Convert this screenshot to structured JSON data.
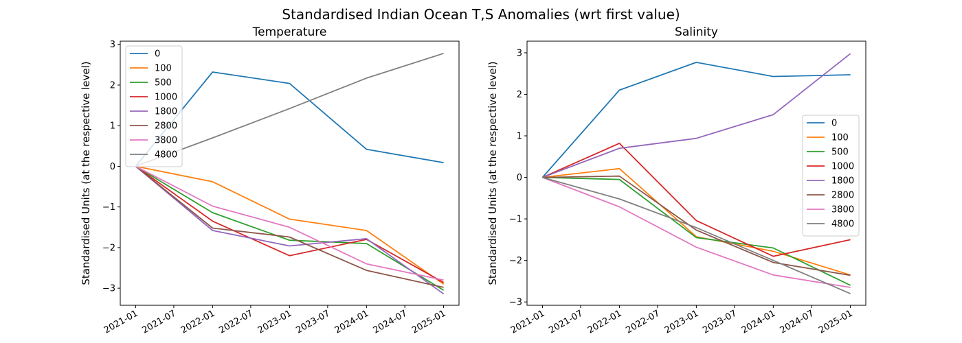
{
  "suptitle": "Standardised Indian Ocean T,S Anomalies (wrt first value)",
  "colors": [
    "#1f77b4",
    "#ff7f0e",
    "#2ca02c",
    "#d62728",
    "#9467bd",
    "#8c564b",
    "#e377c2",
    "#7f7f7f"
  ],
  "chart_data": [
    {
      "type": "line",
      "title": "Temperature",
      "xlabel": "",
      "ylabel": "Standardised Units (at the respective level)",
      "x": [
        "2021-01-01",
        "2022-01-01",
        "2023-01-01",
        "2024-01-01",
        "2025-01-01"
      ],
      "xticks": [
        "2021-01",
        "2021-07",
        "2022-01",
        "2022-07",
        "2023-01",
        "2023-07",
        "2024-01",
        "2024-07",
        "2025-01"
      ],
      "yticks": [
        -3,
        -2,
        -1,
        0,
        1,
        2,
        3
      ],
      "ylim": [
        -3.42,
        3.08
      ],
      "legend": "upper-left",
      "series": [
        {
          "name": "0",
          "values": [
            0,
            2.32,
            2.04,
            0.42,
            0.09
          ]
        },
        {
          "name": "100",
          "values": [
            0,
            -0.38,
            -1.3,
            -1.58,
            -2.9
          ]
        },
        {
          "name": "500",
          "values": [
            0,
            -1.14,
            -1.82,
            -1.9,
            -3.05
          ]
        },
        {
          "name": "1000",
          "values": [
            0,
            -1.35,
            -2.2,
            -1.8,
            -2.86
          ]
        },
        {
          "name": "1800",
          "values": [
            0,
            -1.58,
            -1.96,
            -1.78,
            -3.14
          ]
        },
        {
          "name": "2800",
          "values": [
            0,
            -1.52,
            -1.74,
            -2.56,
            -2.98
          ]
        },
        {
          "name": "3800",
          "values": [
            0,
            -0.98,
            -1.5,
            -2.4,
            -2.8
          ]
        },
        {
          "name": "4800",
          "values": [
            0,
            0.7,
            1.42,
            2.17,
            2.78
          ]
        }
      ]
    },
    {
      "type": "line",
      "title": "Salinity",
      "xlabel": "",
      "ylabel": "Standardised Units (at the respective level)",
      "x": [
        "2021-01-01",
        "2022-01-01",
        "2023-01-01",
        "2024-01-01",
        "2025-01-01"
      ],
      "xticks": [
        "2021-01",
        "2021-07",
        "2022-01",
        "2022-07",
        "2023-01",
        "2023-07",
        "2024-01",
        "2024-07",
        "2025-01"
      ],
      "yticks": [
        -3,
        -2,
        -1,
        0,
        1,
        2,
        3
      ],
      "ylim": [
        -3.08,
        3.28
      ],
      "legend": "center-right",
      "series": [
        {
          "name": "0",
          "values": [
            0,
            2.1,
            2.77,
            2.43,
            2.47
          ]
        },
        {
          "name": "100",
          "values": [
            0,
            0.21,
            -1.43,
            -1.78,
            -2.35
          ]
        },
        {
          "name": "500",
          "values": [
            0,
            -0.05,
            -1.45,
            -1.7,
            -2.6
          ]
        },
        {
          "name": "1000",
          "values": [
            0,
            0.82,
            -1.04,
            -1.9,
            -1.5
          ]
        },
        {
          "name": "1800",
          "values": [
            0,
            0.7,
            0.94,
            1.51,
            2.98
          ]
        },
        {
          "name": "2800",
          "values": [
            0,
            0.03,
            -1.27,
            -2.05,
            -2.36
          ]
        },
        {
          "name": "3800",
          "values": [
            0,
            -0.71,
            -1.68,
            -2.35,
            -2.65
          ]
        },
        {
          "name": "4800",
          "values": [
            0,
            -0.52,
            -1.21,
            -2.0,
            -2.8
          ]
        }
      ]
    }
  ]
}
